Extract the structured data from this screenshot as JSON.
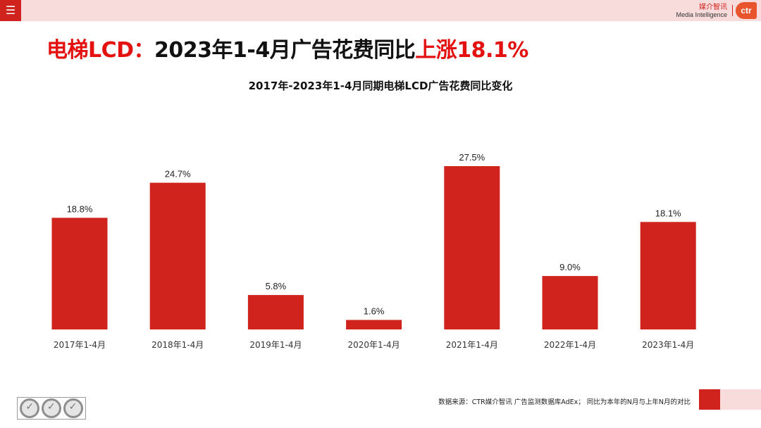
{
  "menu": {
    "icon": "menu-icon",
    "glyph": "☰"
  },
  "brand": {
    "cn": "媒介智讯",
    "en": "Media Intelligence",
    "logo": "ctr"
  },
  "headline": {
    "part1": "电梯LCD：",
    "part2": "2023年1-4月广告花费同比",
    "part3": "上涨18.1%"
  },
  "chart_data": {
    "type": "bar",
    "title": "2017年-2023年1-4月同期电梯LCD广告花费同比变化",
    "categories": [
      "2017年1-4月",
      "2018年1-4月",
      "2019年1-4月",
      "2020年1-4月",
      "2021年1-4月",
      "2022年1-4月",
      "2023年1-4月"
    ],
    "values": [
      18.8,
      24.7,
      5.8,
      1.6,
      27.5,
      9.0,
      18.1
    ],
    "value_labels": [
      "18.8%",
      "24.7%",
      "5.8%",
      "1.6%",
      "27.5%",
      "9.0%",
      "18.1%"
    ],
    "ylim": [
      0,
      27.5
    ],
    "grid": false,
    "bar_color": "#d0231d"
  },
  "footer": {
    "source": "数据来源：CTR媒介智讯 广告监测数据库AdEx； 同比为本年的N月与上年N月的对比",
    "cert_icons": [
      "sgs-certification-icon",
      "sgs-certification-icon",
      "sgs-certification-icon"
    ]
  },
  "colors": {
    "accent": "#d0231d",
    "headline_red": "#e3110f",
    "topbar_pink": "#f8dcdc"
  }
}
